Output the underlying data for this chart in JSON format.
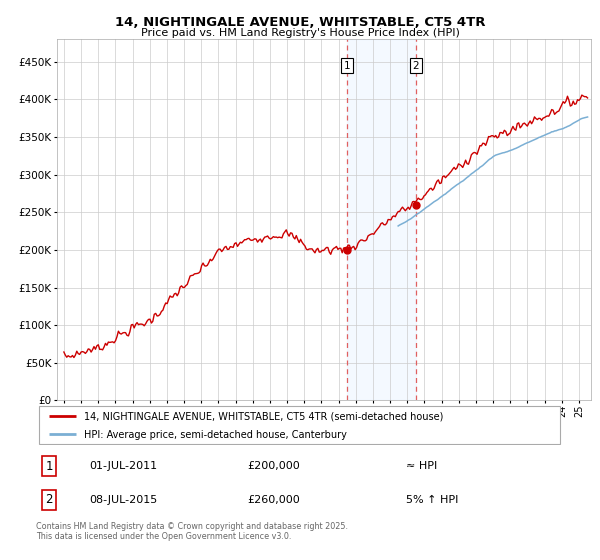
{
  "title": "14, NIGHTINGALE AVENUE, WHITSTABLE, CT5 4TR",
  "subtitle": "Price paid vs. HM Land Registry's House Price Index (HPI)",
  "legend_line1": "14, NIGHTINGALE AVENUE, WHITSTABLE, CT5 4TR (semi-detached house)",
  "legend_line2": "HPI: Average price, semi-detached house, Canterbury",
  "annotation1_label": "1",
  "annotation1_date": "01-JUL-2011",
  "annotation1_price": "£200,000",
  "annotation1_hpi": "≈ HPI",
  "annotation2_label": "2",
  "annotation2_date": "08-JUL-2015",
  "annotation2_price": "£260,000",
  "annotation2_hpi": "5% ↑ HPI",
  "footer": "Contains HM Land Registry data © Crown copyright and database right 2025.\nThis data is licensed under the Open Government Licence v3.0.",
  "sale1_year": 2011.5,
  "sale1_value": 200000,
  "sale2_year": 2015.5,
  "sale2_value": 260000,
  "red_line_color": "#cc0000",
  "blue_line_color": "#7bafd4",
  "shade_color": "#ddeeff",
  "vline_color": "#e06060",
  "grid_color": "#cccccc",
  "bg_color": "#ffffff",
  "ylim": [
    0,
    480000
  ],
  "xlim_start": 1994.6,
  "xlim_end": 2025.7
}
